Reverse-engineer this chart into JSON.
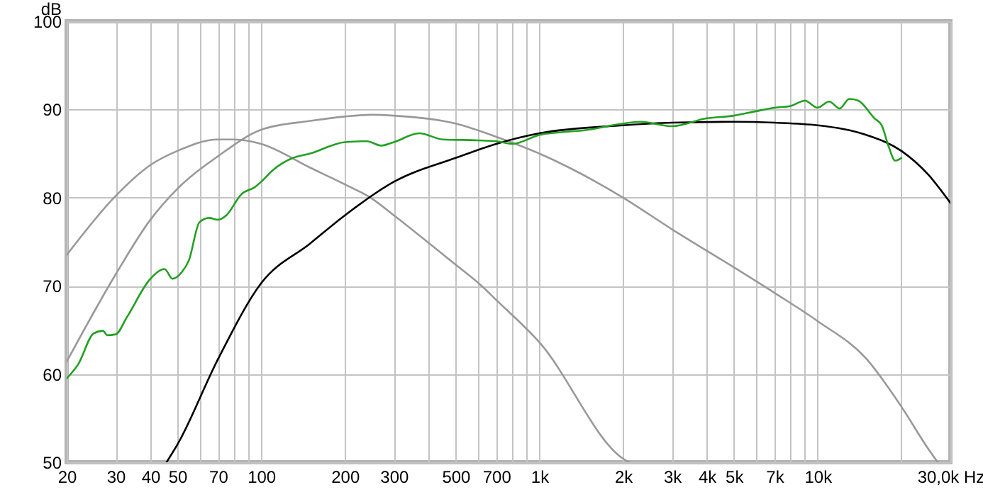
{
  "chart_data": {
    "type": "line",
    "ylabel": "dB",
    "log": "x",
    "grid": true,
    "marker": "none",
    "line_style": "solid",
    "xlim": [
      20,
      30000
    ],
    "ylim": [
      50,
      100
    ],
    "xticks": [
      20,
      30,
      40,
      50,
      {
        "value": 60,
        "label": null
      },
      70,
      {
        "value": 80,
        "label": null
      },
      {
        "value": 90,
        "label": null
      },
      100,
      200,
      300,
      {
        "value": 400,
        "label": null
      },
      500,
      {
        "value": 600,
        "label": null
      },
      700,
      {
        "value": 800,
        "label": null
      },
      {
        "value": 900,
        "label": null
      },
      {
        "value": 1000,
        "label": "1k"
      },
      {
        "value": 2000,
        "label": "2k"
      },
      {
        "value": 3000,
        "label": "3k"
      },
      {
        "value": 4000,
        "label": "4k"
      },
      {
        "value": 5000,
        "label": "5k"
      },
      {
        "value": 6000,
        "label": null
      },
      {
        "value": 7000,
        "label": "7k"
      },
      {
        "value": 8000,
        "label": null
      },
      {
        "value": 9000,
        "label": null
      },
      {
        "value": 10000,
        "label": "10k"
      },
      {
        "value": 20000,
        "label": null
      },
      {
        "value": 30000,
        "label": "30,0k Hz"
      }
    ],
    "yticks": [
      50,
      60,
      70,
      80,
      90,
      100
    ],
    "series": [
      {
        "color": "#999999",
        "x": [
          20,
          30,
          40,
          50,
          70,
          80,
          100,
          150,
          200,
          250,
          300,
          500,
          620,
          700,
          1000,
          2000,
          2100
        ],
        "values": [
          73.5,
          80.2,
          83.7,
          85.3,
          86.6,
          86.6,
          86.1,
          83.4,
          81.5,
          79.9,
          78.0,
          72.4,
          70.0,
          68.4,
          63.6,
          50.4,
          50
        ]
      },
      {
        "color": "#999999",
        "x": [
          20,
          30,
          40,
          50,
          70,
          100,
          150,
          200,
          250,
          300,
          500,
          700,
          1000,
          2000,
          3000,
          5000,
          7000,
          10000,
          15000,
          20000,
          25000,
          27000
        ],
        "values": [
          61.4,
          71.3,
          77.5,
          81.0,
          84.7,
          87.7,
          88.7,
          89.2,
          89.4,
          89.3,
          88.4,
          86.9,
          85.0,
          80.0,
          76.4,
          72.1,
          69.2,
          66.0,
          61.7,
          56.3,
          51.5,
          50
        ]
      },
      {
        "color": "#000000",
        "x": [
          45.7,
          50,
          70,
          100,
          150,
          200,
          300,
          500,
          700,
          1000,
          2000,
          3000,
          5000,
          7000,
          10000,
          15000,
          20000,
          25000,
          30000
        ],
        "values": [
          50,
          52.0,
          61.7,
          70.3,
          74.8,
          78.0,
          81.8,
          84.5,
          86.1,
          87.3,
          88.2,
          88.5,
          88.6,
          88.5,
          88.2,
          87.1,
          85.3,
          82.6,
          79.4
        ]
      },
      {
        "color": "#22a022",
        "x": [
          20,
          22,
          25,
          27,
          28,
          30,
          33,
          40,
          45,
          48,
          52,
          55,
          60,
          65,
          70,
          75,
          85,
          95,
          100,
          110,
          130,
          150,
          200,
          240,
          270,
          300,
          370,
          450,
          600,
          700,
          800,
          1000,
          1500,
          2000,
          2300,
          3000,
          4000,
          5000,
          6000,
          7000,
          8000,
          9000,
          10000,
          11000,
          12000,
          13000,
          14000,
          16000,
          17000,
          18000,
          19000,
          20000
        ],
        "values": [
          59.5,
          61.1,
          64.6,
          64.9,
          64.4,
          64.5,
          66.5,
          70.8,
          71.9,
          70.8,
          71.6,
          72.9,
          77.2,
          77.7,
          77.5,
          78.0,
          80.4,
          81.2,
          81.8,
          83.1,
          84.5,
          85.0,
          86.3,
          86.4,
          85.9,
          86.3,
          87.3,
          86.6,
          86.5,
          86.4,
          86.1,
          87.1,
          87.7,
          88.4,
          88.6,
          88.1,
          89.0,
          89.3,
          89.8,
          90.2,
          90.4,
          91.0,
          90.2,
          90.9,
          90.1,
          91.2,
          91.0,
          89.0,
          88.2,
          85.8,
          84.2,
          84.5
        ]
      }
    ]
  }
}
